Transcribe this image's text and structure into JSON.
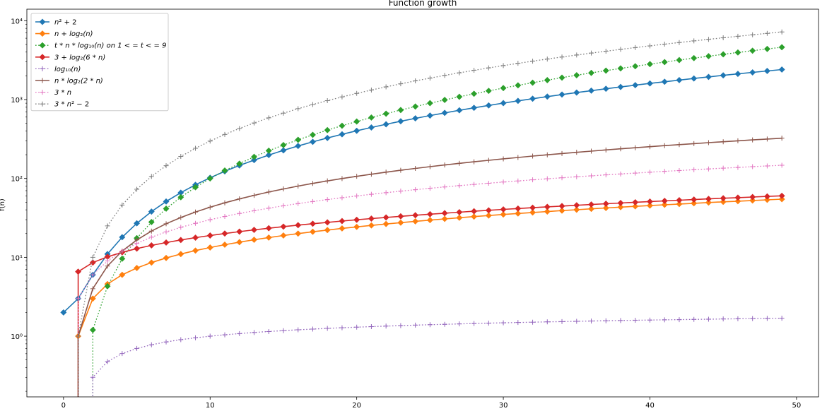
{
  "chart_data": {
    "type": "line",
    "title": "Function growth",
    "xlabel": "",
    "ylabel": "f(n)",
    "yscale": "log",
    "xlim": [
      -2.5,
      51.5
    ],
    "ylim": [
      0.17,
      14000
    ],
    "grid": false,
    "legend_position": "upper-left",
    "x_ticks": [
      0,
      10,
      20,
      30,
      40,
      50
    ],
    "x_tick_labels": [
      "0",
      "10",
      "20",
      "30",
      "40",
      "50"
    ],
    "y_ticks": [
      1,
      10,
      100,
      1000,
      10000
    ],
    "y_tick_labels": [
      "10⁰",
      "10¹",
      "10²",
      "10³",
      "10⁴"
    ],
    "n_range": [
      0,
      49
    ],
    "series": [
      {
        "name": "n² + 2",
        "legend": [
          "n",
          "²",
          " + 2"
        ],
        "color": "#1f77b4",
        "linestyle": "solid",
        "marker": "diamond",
        "x": [
          0,
          1,
          2,
          3,
          4,
          5,
          6,
          7,
          8,
          9,
          10,
          11,
          12,
          13,
          14,
          15,
          16,
          17,
          18,
          19,
          20,
          21,
          22,
          23,
          24,
          25,
          26,
          27,
          28,
          29,
          30,
          31,
          32,
          33,
          34,
          35,
          36,
          37,
          38,
          39,
          40,
          41,
          42,
          43,
          44,
          45,
          46,
          47,
          48,
          49
        ],
        "values": [
          2,
          3,
          6,
          11,
          18,
          27,
          38,
          51,
          66,
          83,
          102,
          123,
          146,
          171,
          198,
          227,
          258,
          291,
          326,
          363,
          402,
          443,
          486,
          531,
          578,
          627,
          678,
          731,
          786,
          843,
          902,
          963,
          1026,
          1091,
          1158,
          1227,
          1298,
          1371,
          1446,
          1523,
          1602,
          1683,
          1766,
          1851,
          1938,
          2027,
          2118,
          2211,
          2306,
          2403
        ]
      },
      {
        "name": "n + log₂(n)",
        "legend": [
          "n + log",
          "₂",
          "(n)"
        ],
        "color": "#ff7f0e",
        "linestyle": "solid",
        "marker": "diamond",
        "x": [
          1,
          2,
          3,
          4,
          5,
          6,
          7,
          8,
          9,
          10,
          11,
          12,
          13,
          14,
          15,
          16,
          17,
          18,
          19,
          20,
          21,
          22,
          23,
          24,
          25,
          26,
          27,
          28,
          29,
          30,
          31,
          32,
          33,
          34,
          35,
          36,
          37,
          38,
          39,
          40,
          41,
          42,
          43,
          44,
          45,
          46,
          47,
          48,
          49
        ],
        "values": [
          1,
          3,
          4.58,
          6,
          7.32,
          8.58,
          9.81,
          11,
          12.17,
          13.32,
          14.46,
          15.58,
          16.7,
          17.81,
          18.91,
          20,
          21.09,
          22.17,
          23.25,
          24.32,
          25.39,
          26.46,
          27.52,
          28.58,
          29.64,
          30.7,
          31.75,
          32.81,
          33.86,
          34.91,
          35.95,
          37,
          38.04,
          39.09,
          40.13,
          41.17,
          42.21,
          43.25,
          44.29,
          45.32,
          46.36,
          47.39,
          48.43,
          49.46,
          50.49,
          51.52,
          52.55,
          53.58,
          54.61
        ]
      },
      {
        "name": "t * n * log₁₀(n) on 1 <= t <= 9",
        "legend": [
          "t * n * log",
          "₁₀",
          "(n) on 1 < = t < = 9"
        ],
        "color": "#2ca02c",
        "linestyle": "dotted",
        "marker": "diamond",
        "x": [
          2,
          3,
          4,
          5,
          6,
          7,
          8,
          9,
          10,
          11,
          12,
          13,
          14,
          15,
          16,
          17,
          18,
          19,
          20,
          21,
          22,
          23,
          24,
          25,
          26,
          27,
          28,
          29,
          30,
          31,
          32,
          33,
          34,
          35,
          36,
          37,
          38,
          39,
          40,
          41,
          42,
          43,
          44,
          45,
          46,
          47,
          48,
          49
        ],
        "values": [
          1.2,
          4.3,
          9.6,
          17.5,
          28,
          41.4,
          57.8,
          77.3,
          100,
          126,
          154,
          188,
          225,
          265,
          309,
          357,
          410,
          466,
          527,
          592,
          662,
          737,
          816,
          901,
          990,
          1085,
          1185,
          1290,
          1400,
          1516,
          1637,
          1764,
          1897,
          2035,
          2179,
          2329,
          2485,
          2647,
          2815,
          2989,
          3170,
          3356,
          3549,
          3748,
          3954,
          4166,
          4385,
          4610
        ]
      },
      {
        "name": "3 + log₂(6 * n)",
        "legend": [
          "3 + log",
          "₂",
          "(6 * n)"
        ],
        "color": "#d62728",
        "linestyle": "solid",
        "marker": "diamond",
        "x": [
          1,
          2,
          3,
          4,
          5,
          6,
          7,
          8,
          9,
          10,
          11,
          12,
          13,
          14,
          15,
          16,
          17,
          18,
          19,
          20,
          21,
          22,
          23,
          24,
          25,
          26,
          27,
          28,
          29,
          30,
          31,
          32,
          33,
          34,
          35,
          36,
          37,
          38,
          39,
          40,
          41,
          42,
          43,
          44,
          45,
          46,
          47,
          48,
          49
        ],
        "values": [
          6.58,
          8.58,
          10.17,
          11.58,
          12.9,
          14.17,
          15.39,
          16.58,
          17.75,
          18.9,
          20.04,
          21.17,
          22.29,
          23.39,
          24.49,
          25.58,
          26.67,
          27.75,
          28.83,
          29.9,
          30.97,
          32.04,
          33.1,
          34.17,
          35.22,
          36.28,
          37.34,
          38.39,
          39.44,
          40.49,
          41.54,
          42.58,
          43.63,
          44.67,
          45.71,
          46.75,
          47.79,
          48.83,
          49.87,
          50.9,
          51.94,
          52.97,
          54.01,
          55.04,
          56.07,
          57.1,
          58.13,
          59.16,
          60.19
        ]
      },
      {
        "name": "log₁₀(n)",
        "legend": [
          "log",
          "₁₀",
          "(n)"
        ],
        "color": "#9467bd",
        "linestyle": "dotted",
        "marker": "plus",
        "x": [
          2,
          3,
          4,
          5,
          6,
          7,
          8,
          9,
          10,
          11,
          12,
          13,
          14,
          15,
          16,
          17,
          18,
          19,
          20,
          21,
          22,
          23,
          24,
          25,
          26,
          27,
          28,
          29,
          30,
          31,
          32,
          33,
          34,
          35,
          36,
          37,
          38,
          39,
          40,
          41,
          42,
          43,
          44,
          45,
          46,
          47,
          48,
          49
        ],
        "values": [
          0.301,
          0.477,
          0.602,
          0.699,
          0.778,
          0.845,
          0.903,
          0.954,
          1,
          1.041,
          1.079,
          1.114,
          1.146,
          1.176,
          1.204,
          1.23,
          1.255,
          1.279,
          1.301,
          1.322,
          1.342,
          1.362,
          1.38,
          1.398,
          1.415,
          1.431,
          1.447,
          1.462,
          1.477,
          1.491,
          1.505,
          1.519,
          1.531,
          1.544,
          1.556,
          1.568,
          1.58,
          1.591,
          1.602,
          1.613,
          1.623,
          1.633,
          1.643,
          1.653,
          1.663,
          1.672,
          1.681,
          1.69
        ]
      },
      {
        "name": "n * log₂(2 * n)",
        "legend": [
          "n * log",
          "₂",
          "(2 * n)"
        ],
        "color": "#8c564b",
        "linestyle": "solid",
        "marker": "plus",
        "x": [
          1,
          2,
          3,
          4,
          5,
          6,
          7,
          8,
          9,
          10,
          11,
          12,
          13,
          14,
          15,
          16,
          17,
          18,
          19,
          20,
          21,
          22,
          23,
          24,
          25,
          26,
          27,
          28,
          29,
          30,
          31,
          32,
          33,
          34,
          35,
          36,
          37,
          38,
          39,
          40,
          41,
          42,
          43,
          44,
          45,
          46,
          47,
          48,
          49
        ],
        "values": [
          1,
          4,
          7.75,
          12,
          16.61,
          21.51,
          26.65,
          32,
          37.53,
          43.22,
          49.05,
          55.02,
          61.11,
          67.31,
          73.6,
          80,
          86.48,
          93.06,
          99.71,
          106.44,
          113.24,
          120.11,
          127.04,
          134.04,
          141.1,
          148.21,
          155.38,
          162.6,
          169.87,
          177.19,
          184.56,
          192,
          199.45,
          206.96,
          214.52,
          222.11,
          229.75,
          237.42,
          245.14,
          252.88,
          260.66,
          268.48,
          276.33,
          284.21,
          292.12,
          300.06,
          308.03,
          316.03,
          324.06
        ]
      },
      {
        "name": "3 * n",
        "legend": [
          "3 * n"
        ],
        "color": "#e377c2",
        "linestyle": "dotted",
        "marker": "plus",
        "x": [
          1,
          2,
          3,
          4,
          5,
          6,
          7,
          8,
          9,
          10,
          11,
          12,
          13,
          14,
          15,
          16,
          17,
          18,
          19,
          20,
          21,
          22,
          23,
          24,
          25,
          26,
          27,
          28,
          29,
          30,
          31,
          32,
          33,
          34,
          35,
          36,
          37,
          38,
          39,
          40,
          41,
          42,
          43,
          44,
          45,
          46,
          47,
          48,
          49
        ],
        "values": [
          3,
          6,
          9,
          12,
          15,
          18,
          21,
          24,
          27,
          30,
          33,
          36,
          39,
          42,
          45,
          48,
          51,
          54,
          57,
          60,
          63,
          66,
          69,
          72,
          75,
          78,
          81,
          84,
          87,
          90,
          93,
          96,
          99,
          102,
          105,
          108,
          111,
          114,
          117,
          120,
          123,
          126,
          129,
          132,
          135,
          138,
          141,
          144,
          147
        ]
      },
      {
        "name": "3 * n² − 2",
        "legend": [
          "3 * n",
          "²",
          " − 2"
        ],
        "color": "#7f7f7f",
        "linestyle": "dotted",
        "marker": "plus",
        "x": [
          1,
          2,
          3,
          4,
          5,
          6,
          7,
          8,
          9,
          10,
          11,
          12,
          13,
          14,
          15,
          16,
          17,
          18,
          19,
          20,
          21,
          22,
          23,
          24,
          25,
          26,
          27,
          28,
          29,
          30,
          31,
          32,
          33,
          34,
          35,
          36,
          37,
          38,
          39,
          40,
          41,
          42,
          43,
          44,
          45,
          46,
          47,
          48,
          49
        ],
        "values": [
          1,
          10,
          25,
          46,
          73,
          106,
          145,
          190,
          241,
          298,
          361,
          430,
          505,
          586,
          673,
          766,
          865,
          970,
          1081,
          1198,
          1321,
          1450,
          1585,
          1726,
          1873,
          2026,
          2185,
          2350,
          2521,
          2698,
          2881,
          3070,
          3265,
          3466,
          3673,
          3886,
          4105,
          4330,
          4561,
          4798,
          5041,
          5290,
          5545,
          5806,
          6073,
          6346,
          6625,
          6910,
          7201
        ]
      }
    ]
  }
}
